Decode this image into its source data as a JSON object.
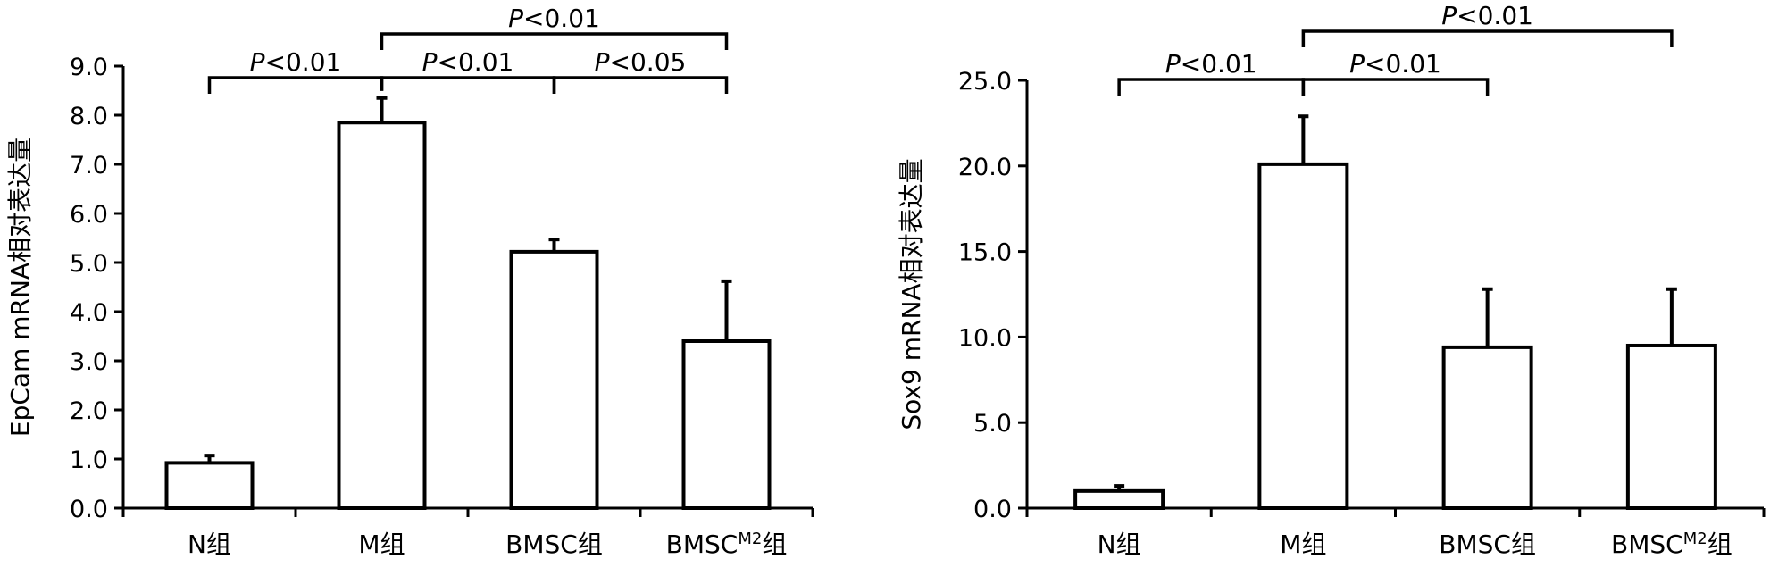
{
  "chart_data": [
    {
      "type": "bar",
      "title": "",
      "xlabel": "",
      "ylabel": "EpCam mRNA相对表达量",
      "ylim": [
        0,
        9
      ],
      "yticks": [
        "0.0",
        "1.0",
        "2.0",
        "3.0",
        "4.0",
        "5.0",
        "6.0",
        "7.0",
        "8.0",
        "9.0"
      ],
      "categories": [
        {
          "main": "N组",
          "sup": "",
          "tail": ""
        },
        {
          "main": "M组",
          "sup": "",
          "tail": ""
        },
        {
          "main": "BMSC组",
          "sup": "",
          "tail": ""
        },
        {
          "main": "BMSC",
          "sup": "M2",
          "tail": "组"
        }
      ],
      "values": [
        0.92,
        7.85,
        5.22,
        3.4
      ],
      "errors": [
        0.15,
        0.5,
        0.25,
        1.22
      ],
      "significance": [
        {
          "from": 0,
          "to": 1,
          "p": "<0.01",
          "level": 1
        },
        {
          "from": 1,
          "to": 2,
          "p": "<0.01",
          "level": 1
        },
        {
          "from": 1,
          "to": 3,
          "p": "<0.01",
          "level": 2
        },
        {
          "from": 2,
          "to": 3,
          "p": "<0.05",
          "level": 1
        }
      ]
    },
    {
      "type": "bar",
      "title": "",
      "xlabel": "",
      "ylabel": "Sox9 mRNA相对表达量",
      "ylim": [
        0,
        25
      ],
      "yticks": [
        "0.0",
        "5.0",
        "10.0",
        "15.0",
        "20.0",
        "25.0"
      ],
      "categories": [
        {
          "main": "N组",
          "sup": "",
          "tail": ""
        },
        {
          "main": "M组",
          "sup": "",
          "tail": ""
        },
        {
          "main": "BMSC组",
          "sup": "",
          "tail": ""
        },
        {
          "main": "BMSC",
          "sup": "M2",
          "tail": "组"
        }
      ],
      "values": [
        1.0,
        20.1,
        9.4,
        9.5
      ],
      "errors": [
        0.3,
        2.8,
        3.4,
        3.3
      ],
      "significance": [
        {
          "from": 0,
          "to": 1,
          "p": "<0.01",
          "level": 1
        },
        {
          "from": 1,
          "to": 2,
          "p": "<0.01",
          "level": 1
        },
        {
          "from": 1,
          "to": 3,
          "p": "<0.01",
          "level": 2
        }
      ]
    }
  ]
}
